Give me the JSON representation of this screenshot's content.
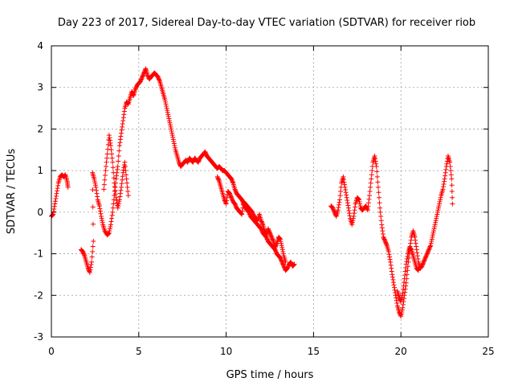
{
  "chart_data": {
    "type": "scatter",
    "title": "Day 223 of 2017, Sidereal Day-to-day VTEC variation (SDTVAR) for receiver riob",
    "xlabel": "GPS time / hours",
    "ylabel": "SDTVAR / TECUs",
    "xlim": [
      0,
      25
    ],
    "ylim": [
      -3,
      4
    ],
    "xticks": [
      "0",
      "5",
      "10",
      "15",
      "20",
      "25"
    ],
    "yticks": [
      "-3",
      "-2",
      "-1",
      "0",
      "1",
      "2",
      "3",
      "4"
    ],
    "grid": true,
    "marker": "+",
    "color": "#ff0000",
    "series": [
      {
        "name": "SDTVAR",
        "segments": [
          [
            [
              0.0,
              -0.1
            ],
            [
              0.1,
              -0.05
            ],
            [
              0.2,
              0.2
            ],
            [
              0.3,
              0.45
            ],
            [
              0.4,
              0.7
            ],
            [
              0.5,
              0.85
            ],
            [
              0.6,
              0.9
            ],
            [
              0.7,
              0.85
            ],
            [
              0.8,
              0.9
            ],
            [
              0.9,
              0.75
            ],
            [
              0.95,
              0.6
            ]
          ],
          [
            [
              1.7,
              -0.9
            ],
            [
              1.8,
              -0.95
            ],
            [
              1.9,
              -1.05
            ],
            [
              2.0,
              -1.2
            ],
            [
              2.1,
              -1.35
            ],
            [
              2.2,
              -1.45
            ],
            [
              2.3,
              -1.2
            ],
            [
              2.4,
              -0.7
            ],
            [
              2.35,
              0.95
            ],
            [
              2.45,
              0.8
            ],
            [
              2.55,
              0.6
            ],
            [
              2.65,
              0.3
            ],
            [
              2.75,
              0.15
            ],
            [
              2.85,
              -0.1
            ],
            [
              2.95,
              -0.3
            ],
            [
              3.05,
              -0.45
            ],
            [
              3.2,
              -0.55
            ],
            [
              3.3,
              -0.5
            ],
            [
              3.4,
              -0.3
            ],
            [
              3.5,
              0.0
            ],
            [
              3.6,
              0.4
            ],
            [
              3.7,
              0.8
            ],
            [
              3.8,
              1.1
            ],
            [
              3.9,
              1.6
            ],
            [
              4.0,
              1.9
            ],
            [
              4.1,
              2.2
            ],
            [
              4.2,
              2.5
            ],
            [
              4.3,
              2.65
            ],
            [
              4.4,
              2.6
            ],
            [
              4.5,
              2.75
            ],
            [
              4.6,
              2.9
            ],
            [
              4.7,
              2.8
            ],
            [
              4.8,
              2.95
            ],
            [
              4.9,
              3.05
            ],
            [
              5.0,
              3.1
            ],
            [
              5.1,
              3.15
            ],
            [
              5.2,
              3.25
            ],
            [
              5.3,
              3.35
            ],
            [
              5.4,
              3.45
            ],
            [
              5.5,
              3.3
            ],
            [
              5.6,
              3.2
            ],
            [
              5.7,
              3.25
            ],
            [
              5.8,
              3.3
            ],
            [
              5.9,
              3.35
            ],
            [
              6.0,
              3.3
            ],
            [
              6.1,
              3.25
            ],
            [
              6.2,
              3.15
            ],
            [
              6.3,
              3.0
            ],
            [
              6.4,
              2.85
            ],
            [
              6.5,
              2.7
            ],
            [
              6.6,
              2.5
            ],
            [
              6.7,
              2.3
            ],
            [
              6.8,
              2.1
            ],
            [
              6.9,
              1.9
            ],
            [
              7.0,
              1.7
            ],
            [
              7.1,
              1.5
            ],
            [
              7.2,
              1.35
            ],
            [
              7.3,
              1.2
            ],
            [
              7.4,
              1.1
            ],
            [
              7.5,
              1.15
            ],
            [
              7.6,
              1.2
            ],
            [
              7.7,
              1.25
            ],
            [
              7.8,
              1.2
            ],
            [
              7.9,
              1.3
            ],
            [
              8.0,
              1.25
            ],
            [
              8.1,
              1.2
            ],
            [
              8.2,
              1.3
            ],
            [
              8.3,
              1.25
            ],
            [
              8.4,
              1.2
            ],
            [
              8.5,
              1.3
            ],
            [
              8.6,
              1.35
            ],
            [
              8.7,
              1.4
            ],
            [
              8.8,
              1.45
            ],
            [
              8.9,
              1.35
            ],
            [
              9.0,
              1.3
            ],
            [
              9.1,
              1.25
            ],
            [
              9.2,
              1.2
            ],
            [
              9.3,
              1.15
            ],
            [
              9.4,
              1.1
            ],
            [
              9.5,
              1.05
            ],
            [
              9.6,
              1.1
            ],
            [
              9.7,
              1.05
            ],
            [
              9.8,
              1.0
            ],
            [
              9.9,
              1.0
            ],
            [
              10.0,
              0.95
            ],
            [
              10.1,
              0.9
            ],
            [
              10.2,
              0.85
            ],
            [
              10.3,
              0.8
            ],
            [
              10.4,
              0.7
            ],
            [
              10.5,
              0.55
            ],
            [
              10.6,
              0.45
            ],
            [
              10.7,
              0.4
            ],
            [
              10.8,
              0.35
            ],
            [
              10.9,
              0.3
            ],
            [
              11.0,
              0.2
            ],
            [
              11.1,
              0.1
            ],
            [
              11.2,
              0.05
            ],
            [
              11.3,
              0.0
            ],
            [
              11.4,
              -0.1
            ],
            [
              11.5,
              -0.15
            ],
            [
              11.6,
              -0.2
            ],
            [
              11.7,
              -0.25
            ],
            [
              11.8,
              -0.3
            ],
            [
              11.9,
              -0.35
            ],
            [
              12.0,
              -0.4
            ],
            [
              12.1,
              -0.5
            ],
            [
              12.2,
              -0.55
            ],
            [
              12.3,
              -0.6
            ],
            [
              12.4,
              -0.7
            ],
            [
              12.5,
              -0.75
            ],
            [
              12.6,
              -0.8
            ],
            [
              12.7,
              -0.85
            ],
            [
              12.8,
              -0.9
            ],
            [
              12.9,
              -1.0
            ],
            [
              13.0,
              -1.05
            ],
            [
              13.1,
              -1.1
            ],
            [
              13.2,
              -1.2
            ],
            [
              13.3,
              -1.3
            ],
            [
              13.4,
              -1.4
            ],
            [
              13.5,
              -1.35
            ],
            [
              13.6,
              -1.25
            ],
            [
              13.7,
              -1.2
            ],
            [
              13.8,
              -1.3
            ],
            [
              13.9,
              -1.25
            ]
          ],
          [
            [
              3.0,
              0.55
            ],
            [
              3.1,
              1.0
            ],
            [
              3.2,
              1.4
            ],
            [
              3.3,
              1.85
            ],
            [
              3.4,
              1.6
            ],
            [
              3.5,
              1.2
            ],
            [
              3.6,
              0.7
            ],
            [
              3.7,
              0.35
            ],
            [
              3.8,
              0.1
            ],
            [
              3.9,
              0.3
            ],
            [
              4.0,
              0.6
            ],
            [
              4.1,
              0.95
            ],
            [
              4.2,
              1.2
            ],
            [
              4.3,
              0.8
            ],
            [
              4.4,
              0.4
            ]
          ],
          [
            [
              9.5,
              0.85
            ],
            [
              9.6,
              0.75
            ],
            [
              9.7,
              0.6
            ],
            [
              9.8,
              0.45
            ],
            [
              9.9,
              0.3
            ],
            [
              10.0,
              0.2
            ],
            [
              10.1,
              0.5
            ],
            [
              10.2,
              0.45
            ],
            [
              10.3,
              0.35
            ],
            [
              10.4,
              0.25
            ],
            [
              10.5,
              0.2
            ],
            [
              10.6,
              0.1
            ],
            [
              10.7,
              0.05
            ],
            [
              10.8,
              0.0
            ],
            [
              10.9,
              -0.05
            ],
            [
              11.0,
              0.25
            ],
            [
              11.1,
              0.2
            ],
            [
              11.2,
              0.15
            ],
            [
              11.3,
              0.1
            ],
            [
              11.4,
              0.05
            ],
            [
              11.5,
              0.0
            ],
            [
              11.6,
              -0.1
            ],
            [
              11.7,
              -0.15
            ],
            [
              11.8,
              -0.2
            ],
            [
              11.9,
              -0.05
            ],
            [
              12.0,
              -0.2
            ],
            [
              12.1,
              -0.3
            ],
            [
              12.2,
              -0.45
            ],
            [
              12.3,
              -0.55
            ],
            [
              12.4,
              -0.4
            ],
            [
              12.5,
              -0.5
            ],
            [
              12.6,
              -0.6
            ],
            [
              12.7,
              -0.7
            ],
            [
              12.8,
              -0.85
            ],
            [
              12.9,
              -0.75
            ],
            [
              13.0,
              -0.6
            ],
            [
              13.1,
              -0.65
            ],
            [
              13.2,
              -0.85
            ],
            [
              13.3,
              -1.05
            ],
            [
              13.4,
              -1.2
            ]
          ],
          [
            [
              16.0,
              0.15
            ],
            [
              16.1,
              0.1
            ],
            [
              16.2,
              0.0
            ],
            [
              16.3,
              -0.1
            ],
            [
              16.4,
              0.05
            ],
            [
              16.5,
              0.3
            ],
            [
              16.6,
              0.7
            ],
            [
              16.7,
              0.85
            ],
            [
              16.8,
              0.6
            ],
            [
              16.9,
              0.35
            ],
            [
              17.0,
              0.1
            ],
            [
              17.1,
              -0.15
            ],
            [
              17.2,
              -0.3
            ],
            [
              17.3,
              -0.1
            ],
            [
              17.4,
              0.2
            ],
            [
              17.5,
              0.35
            ],
            [
              17.6,
              0.3
            ],
            [
              17.7,
              0.1
            ],
            [
              17.8,
              0.05
            ],
            [
              17.9,
              0.1
            ],
            [
              18.0,
              0.15
            ],
            [
              18.1,
              0.05
            ],
            [
              18.2,
              0.4
            ],
            [
              18.3,
              0.8
            ],
            [
              18.4,
              1.2
            ],
            [
              18.5,
              1.35
            ],
            [
              18.6,
              1.1
            ],
            [
              18.7,
              0.6
            ],
            [
              18.8,
              0.1
            ],
            [
              18.9,
              -0.3
            ],
            [
              19.0,
              -0.6
            ],
            [
              19.1,
              -0.7
            ],
            [
              19.2,
              -0.8
            ],
            [
              19.3,
              -0.95
            ],
            [
              19.4,
              -1.2
            ],
            [
              19.5,
              -1.5
            ],
            [
              19.6,
              -1.75
            ],
            [
              19.7,
              -2.0
            ],
            [
              19.8,
              -2.25
            ],
            [
              19.9,
              -2.4
            ],
            [
              20.0,
              -2.5
            ],
            [
              20.1,
              -2.3
            ],
            [
              20.2,
              -2.0
            ],
            [
              20.3,
              -1.7
            ],
            [
              20.4,
              -1.3
            ],
            [
              20.5,
              -0.9
            ],
            [
              20.6,
              -0.6
            ],
            [
              20.7,
              -0.45
            ],
            [
              20.8,
              -0.6
            ],
            [
              20.9,
              -0.9
            ],
            [
              21.0,
              -1.2
            ],
            [
              21.1,
              -1.35
            ],
            [
              21.2,
              -1.3
            ],
            [
              21.3,
              -1.2
            ],
            [
              21.4,
              -1.1
            ],
            [
              21.5,
              -1.0
            ],
            [
              21.6,
              -0.9
            ],
            [
              21.7,
              -0.8
            ],
            [
              21.8,
              -0.6
            ],
            [
              21.9,
              -0.4
            ],
            [
              22.0,
              -0.2
            ],
            [
              22.1,
              0.0
            ],
            [
              22.2,
              0.2
            ],
            [
              22.3,
              0.4
            ],
            [
              22.4,
              0.55
            ],
            [
              22.5,
              0.8
            ],
            [
              22.6,
              1.1
            ],
            [
              22.7,
              1.35
            ],
            [
              22.8,
              1.2
            ],
            [
              22.9,
              0.8
            ],
            [
              22.95,
              0.2
            ]
          ],
          [
            [
              19.8,
              -1.9
            ],
            [
              19.9,
              -2.05
            ],
            [
              20.0,
              -2.15
            ],
            [
              20.1,
              -1.95
            ],
            [
              20.2,
              -1.6
            ],
            [
              20.3,
              -1.25
            ],
            [
              20.4,
              -1.0
            ],
            [
              20.5,
              -0.85
            ],
            [
              20.6,
              -0.9
            ],
            [
              20.7,
              -1.05
            ],
            [
              20.8,
              -1.2
            ],
            [
              20.9,
              -1.35
            ],
            [
              21.0,
              -1.4
            ]
          ]
        ]
      }
    ]
  }
}
